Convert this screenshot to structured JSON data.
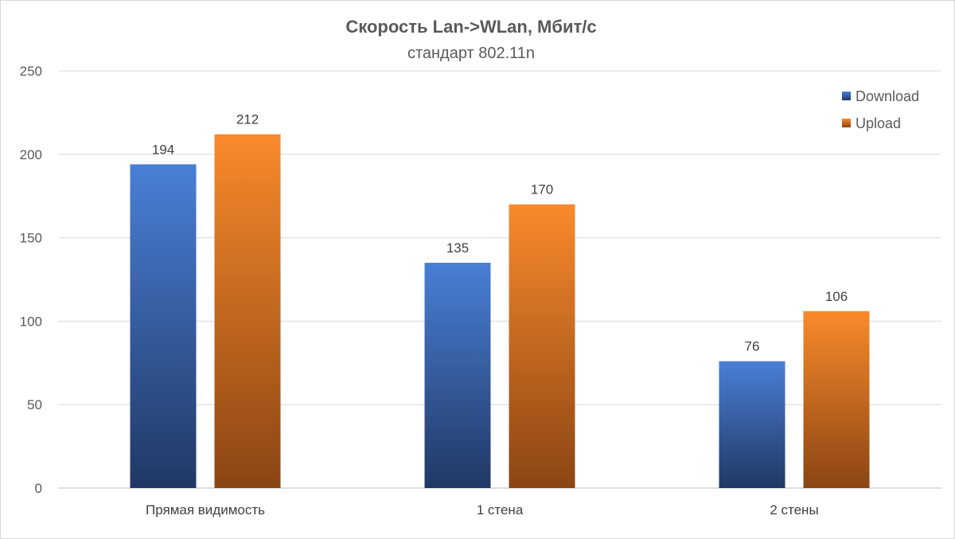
{
  "chart_data": {
    "type": "bar",
    "title": "Скорость Lan->WLan, Мбит/с",
    "subtitle": "стандарт 802.11n",
    "categories": [
      "Прямая видимость",
      "1 стена",
      "2 стены"
    ],
    "series": [
      {
        "name": "Download",
        "values": [
          194,
          135,
          76
        ],
        "color": "#2f5597",
        "color_light": "#4a7fd6",
        "color_dark": "#203864"
      },
      {
        "name": "Upload",
        "values": [
          212,
          170,
          106
        ],
        "color": "#ed7d31",
        "color_light": "#f98a2c",
        "color_dark": "#8b4513"
      }
    ],
    "ylim": [
      0,
      250
    ],
    "yticks": [
      0,
      50,
      100,
      150,
      200,
      250
    ],
    "grid": true,
    "legend_position": "top-right",
    "data_labels": true
  }
}
